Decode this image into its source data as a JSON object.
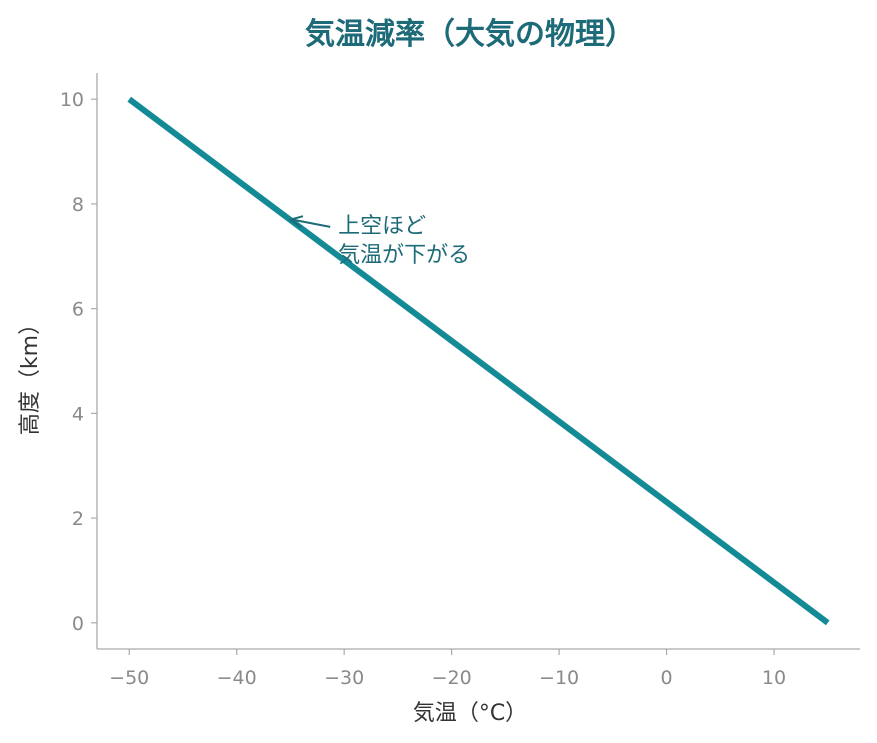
{
  "chart_data": {
    "type": "line",
    "title": "気温減率（大気の物理）",
    "xlabel": "気温（°C）",
    "ylabel": "高度（km）",
    "xlim": [
      -53,
      18
    ],
    "ylim": [
      -0.5,
      10.5
    ],
    "xticks": [
      -50,
      -40,
      -30,
      -20,
      -10,
      0,
      10
    ],
    "xtick_labels": [
      "−50",
      "−40",
      "−30",
      "−20",
      "−10",
      "0",
      "10"
    ],
    "yticks": [
      0,
      2,
      4,
      6,
      8,
      10
    ],
    "ytick_labels": [
      "0",
      "2",
      "4",
      "6",
      "8",
      "10"
    ],
    "grid": false,
    "series": [
      {
        "x": [
          15,
          -50
        ],
        "y": [
          0,
          10
        ],
        "color": "#138a96"
      }
    ],
    "annotation": {
      "lines": [
        "上空ほど",
        "気温が下がる"
      ],
      "point": [
        -35,
        7.7
      ],
      "text_at": [
        -30,
        7.6
      ],
      "color": "#1d6b78"
    },
    "colors": {
      "axis": "#aaaaaa",
      "tick_text": "#8a8a8a",
      "title": "#1d6b78"
    }
  }
}
